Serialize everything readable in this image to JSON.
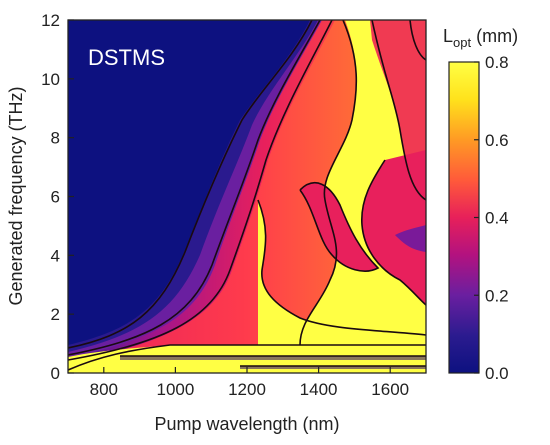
{
  "chart_data": {
    "type": "heatmap",
    "title": "",
    "annotation": "DSTMS",
    "xlabel": "Pump wavelength (nm)",
    "ylabel": "Generated frequency (THz)",
    "xlim": [
      700,
      1700
    ],
    "ylim": [
      0,
      12
    ],
    "xticks": [
      800,
      1000,
      1200,
      1400,
      1600
    ],
    "yticks": [
      0,
      2,
      4,
      6,
      8,
      10,
      12
    ],
    "colorbar": {
      "label_main": "L",
      "label_sub": "opt",
      "label_unit": " (mm)",
      "range": [
        0.0,
        0.8
      ],
      "ticks": [
        "0.0",
        "0.2",
        "0.4",
        "0.6",
        "0.8"
      ],
      "colormap": [
        "#0d1180",
        "#2b1b8f",
        "#6a1fa0",
        "#b3127f",
        "#e7205a",
        "#ff5a3a",
        "#ff9a24",
        "#ffe21c",
        "#ffff44"
      ]
    },
    "regions": [
      {
        "description_value": 0.05,
        "x_range": [
          700,
          1000
        ],
        "y_range": [
          1.2,
          12
        ]
      },
      {
        "description_value": 0.8,
        "x_range": [
          1380,
          1700
        ],
        "y_range": [
          0,
          12
        ]
      },
      {
        "description_value": 0.8,
        "x_range": [
          700,
          1700
        ],
        "y_range": [
          0,
          1
        ]
      }
    ],
    "colors": {
      "contour": "#1a0a10",
      "annotation": "#ffffff"
    }
  }
}
